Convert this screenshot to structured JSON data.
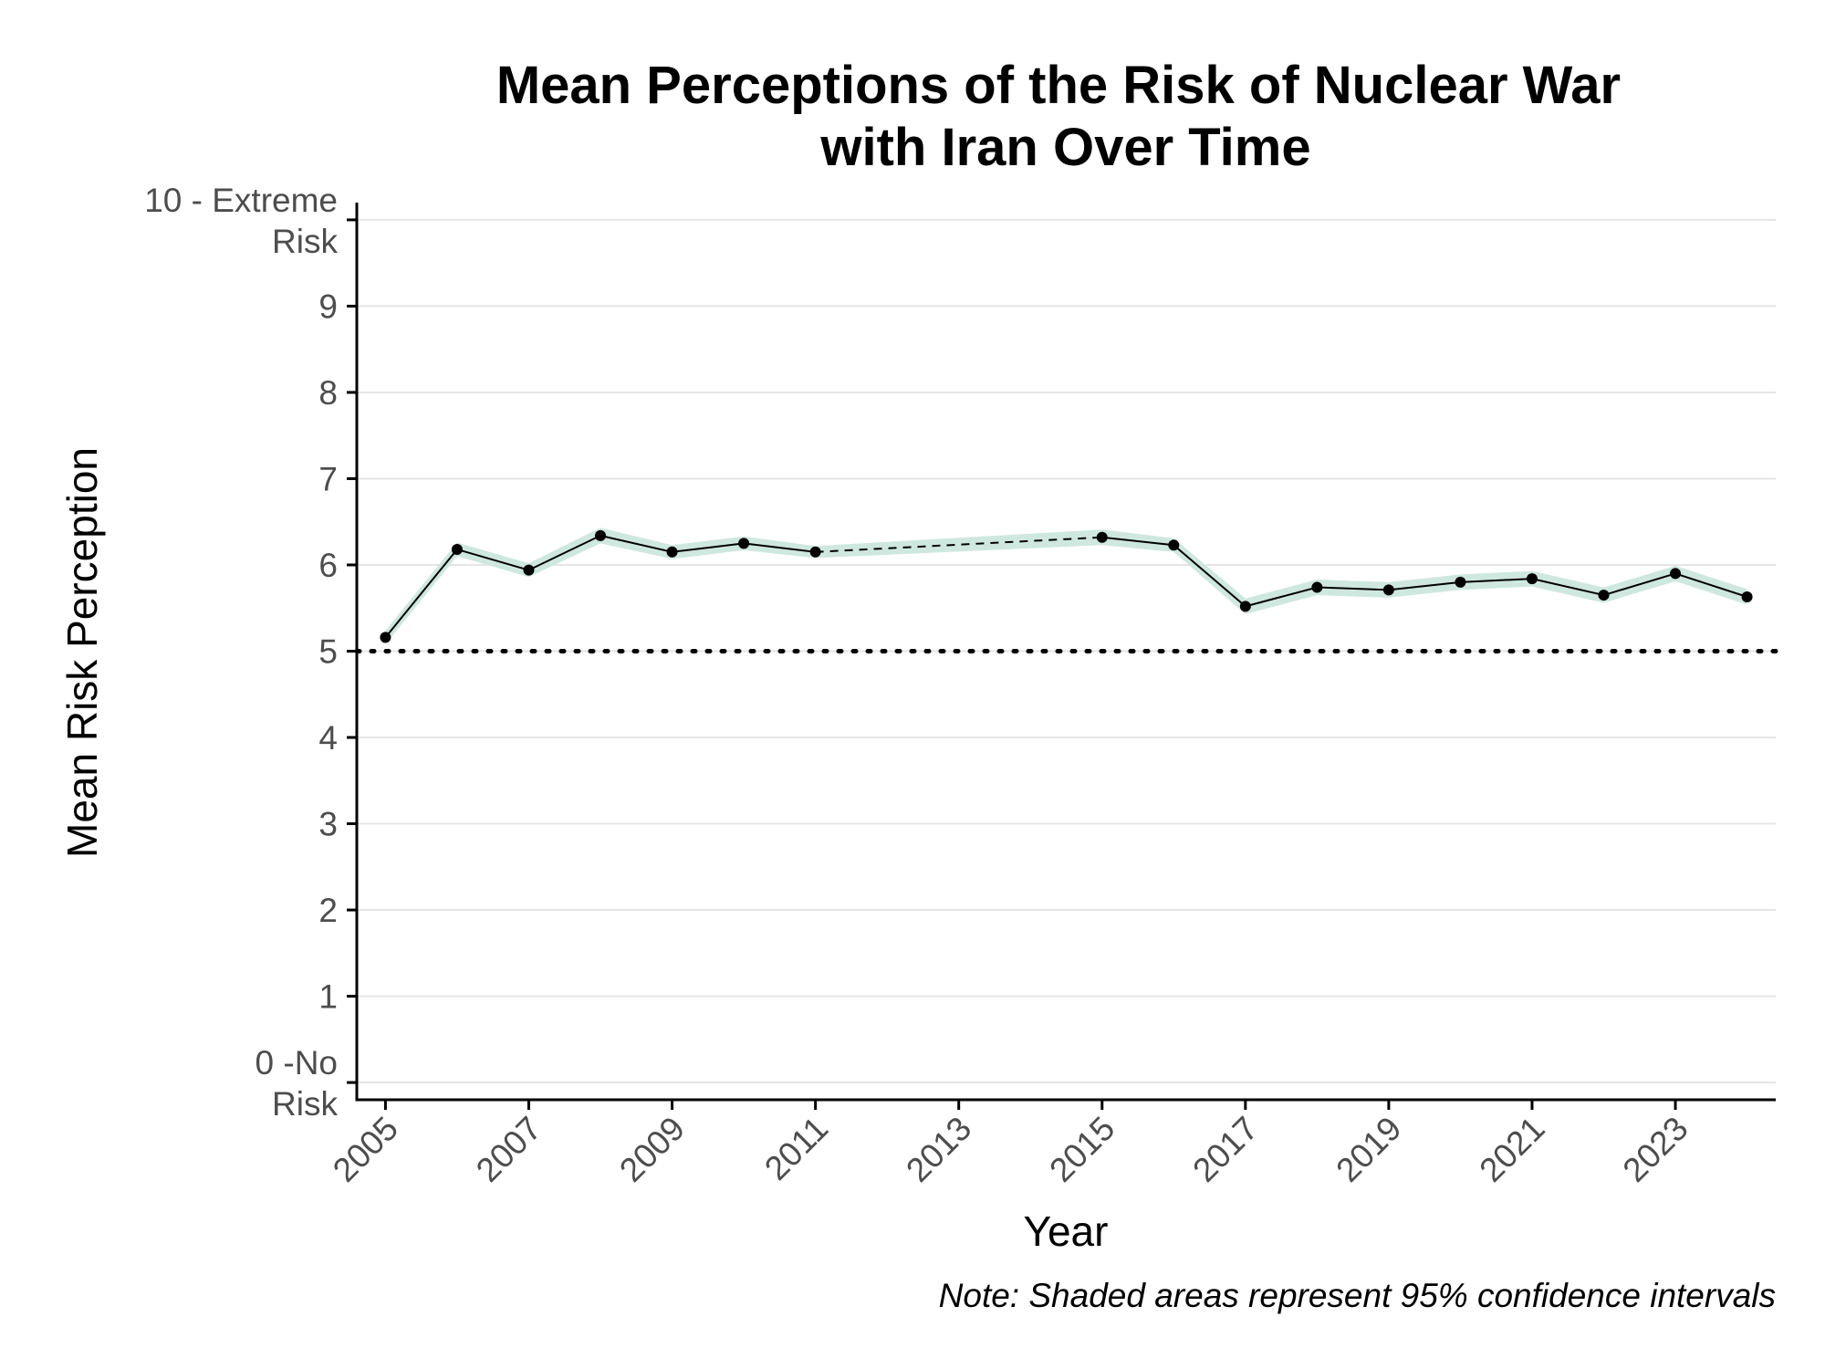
{
  "chart_data": {
    "type": "line",
    "title": "Mean Perceptions of the Risk of Nuclear War with Iran Over Time",
    "title_lines": [
      "Mean Perceptions of the Risk of Nuclear War",
      "with Iran Over Time"
    ],
    "xlabel": "Year",
    "ylabel": "Mean Risk Perception",
    "xlim": [
      2004.6,
      2024.4
    ],
    "ylim": [
      -0.2,
      10.2
    ],
    "x_ticks": [
      2005,
      2007,
      2009,
      2011,
      2013,
      2015,
      2017,
      2019,
      2021,
      2023
    ],
    "y_ticks": [
      {
        "value": 0,
        "lines": [
          "0 -No",
          "Risk"
        ]
      },
      {
        "value": 1,
        "lines": [
          "1"
        ]
      },
      {
        "value": 2,
        "lines": [
          "2"
        ]
      },
      {
        "value": 3,
        "lines": [
          "3"
        ]
      },
      {
        "value": 4,
        "lines": [
          "4"
        ]
      },
      {
        "value": 5,
        "lines": [
          "5"
        ]
      },
      {
        "value": 6,
        "lines": [
          "6"
        ]
      },
      {
        "value": 7,
        "lines": [
          "7"
        ]
      },
      {
        "value": 8,
        "lines": [
          "8"
        ]
      },
      {
        "value": 9,
        "lines": [
          "9"
        ]
      },
      {
        "value": 10,
        "lines": [
          "10 - Extreme",
          "Risk"
        ]
      }
    ],
    "grid": "horizontal",
    "reference_line": {
      "y": 5,
      "style": "dotted"
    },
    "gap_segment": {
      "from": 2011,
      "to": 2015,
      "style": "dashed"
    },
    "series": [
      {
        "name": "Mean risk perception",
        "x": [
          2005,
          2006,
          2007,
          2008,
          2009,
          2010,
          2011,
          2015,
          2016,
          2017,
          2018,
          2019,
          2020,
          2021,
          2022,
          2023,
          2024
        ],
        "y": [
          5.16,
          6.18,
          5.94,
          6.34,
          6.15,
          6.25,
          6.15,
          6.32,
          6.23,
          5.52,
          5.74,
          5.71,
          5.8,
          5.84,
          5.65,
          5.9,
          5.63
        ],
        "ci_low": [
          5.08,
          6.1,
          5.86,
          6.25,
          6.07,
          6.17,
          6.08,
          6.23,
          6.15,
          5.43,
          5.65,
          5.62,
          5.71,
          5.75,
          5.56,
          5.81,
          5.54
        ],
        "ci_high": [
          5.24,
          6.26,
          6.02,
          6.43,
          6.23,
          6.33,
          6.22,
          6.41,
          6.31,
          5.61,
          5.83,
          5.8,
          5.89,
          5.93,
          5.74,
          5.99,
          5.72
        ]
      }
    ],
    "colors": {
      "ci_band": "#cfe8df",
      "line": "#000000",
      "grid": "#e5e5e5",
      "tick_text": "#4d4d4d"
    },
    "note": "Note: Shaded areas represent 95% confidence intervals"
  }
}
